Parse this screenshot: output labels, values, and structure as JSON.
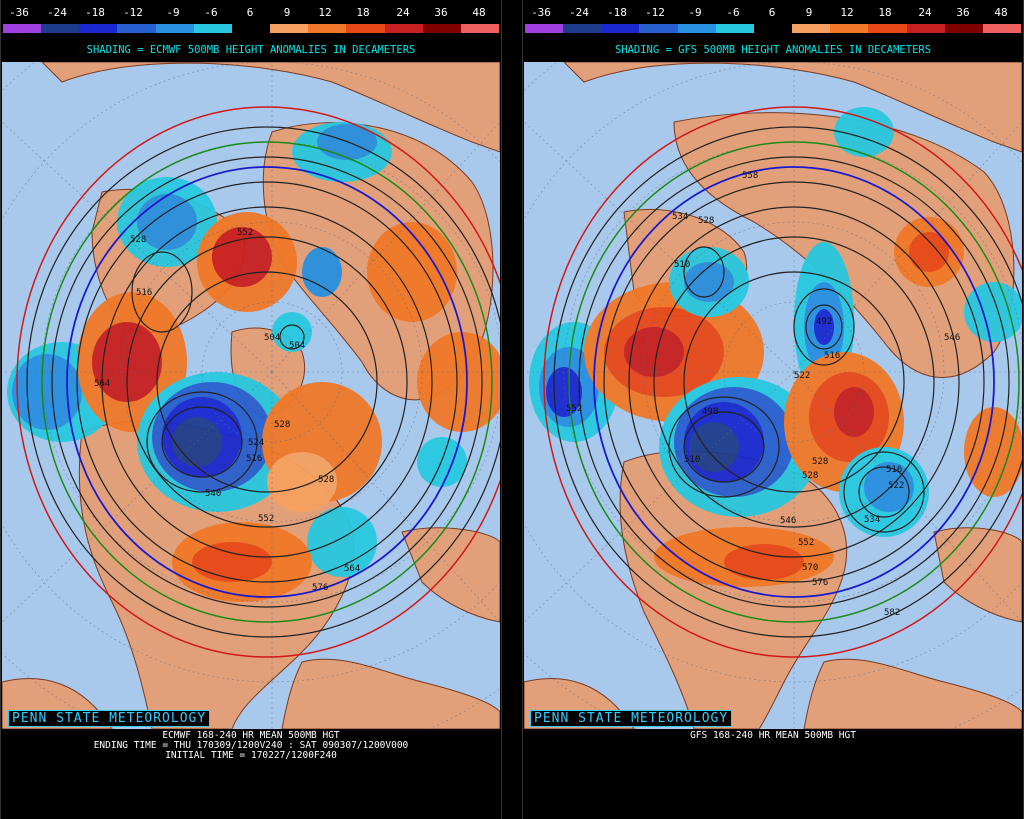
{
  "scale": {
    "labels": [
      "-36",
      "-24",
      "-18",
      "-12",
      "-9",
      "-6",
      "6",
      "9",
      "12",
      "18",
      "24",
      "36",
      "48"
    ],
    "colors": [
      "#a040e0",
      "#1e3c8c",
      "#1a28d0",
      "#2860d0",
      "#2890e0",
      "#28c8e0",
      "#000000",
      "#f5a060",
      "#f07828",
      "#e84818",
      "#c82020",
      "#800000",
      "#f06060"
    ]
  },
  "panels": {
    "left": {
      "shading_title": "SHADING = ECMWF 500MB HEIGHT ANOMALIES IN DECAMETERS",
      "brand": "PENN STATE METEOROLOGY",
      "caption_line1": "ECMWF 168-240 HR MEAN 500MB HGT",
      "caption_line2": "ENDING TIME = THU 170309/1200V240 : SAT 090307/1200V000",
      "caption_line3": "INITIAL TIME = 170227/1200F240",
      "contour_labels": [
        "552",
        "528",
        "516",
        "504",
        "504",
        "564",
        "528",
        "524",
        "516",
        "540",
        "552",
        "528",
        "564",
        "576"
      ]
    },
    "right": {
      "shading_title": "SHADING = GFS 500MB HEIGHT ANOMALIES IN DECAMETERS",
      "brand": "PENN STATE METEOROLOGY",
      "caption_line1": "GFS 168-240 HR MEAN 500MB HGT",
      "contour_labels": [
        "558",
        "534",
        "528",
        "510",
        "492",
        "516",
        "522",
        "498",
        "510",
        "528",
        "516",
        "522",
        "528",
        "534",
        "546",
        "552",
        "570",
        "576",
        "582",
        "546",
        "552"
      ]
    }
  },
  "colors": {
    "ocean": "#a8c8ec",
    "land": "#e2a07a",
    "contour": "#222222",
    "contour_552": "#1a1acc",
    "contour_green": "#1a8a1a",
    "contour_red": "#d01818",
    "brand": "#33ccff",
    "title": "#00e5e5"
  }
}
